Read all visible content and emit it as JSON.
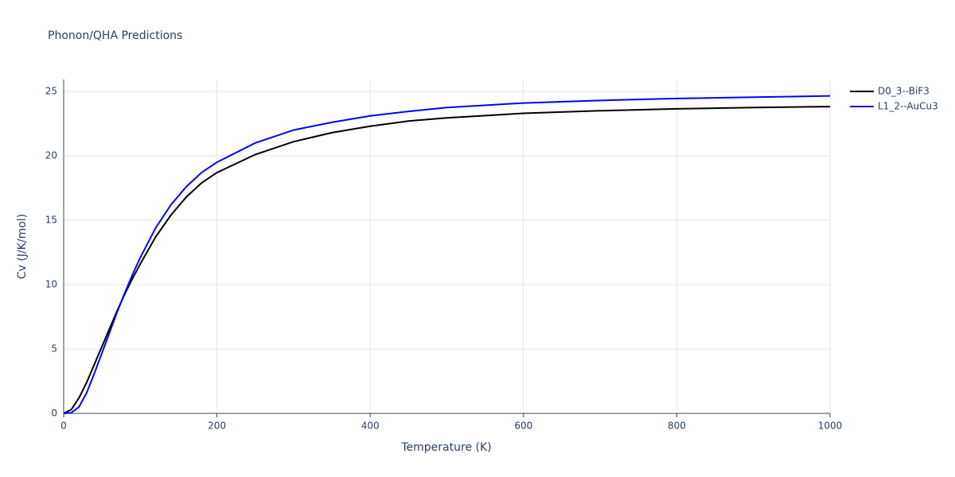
{
  "chart_data": {
    "type": "line",
    "title": "Phonon/QHA Predictions",
    "x_label": "Temperature (K)",
    "y_label": "Cv (J/K/mol)",
    "x": [
      0,
      10,
      20,
      30,
      40,
      50,
      60,
      70,
      80,
      90,
      100,
      120,
      140,
      160,
      180,
      200,
      250,
      300,
      350,
      400,
      450,
      500,
      600,
      700,
      800,
      900,
      1000
    ],
    "series": [
      {
        "name": "D0_3--BiF3",
        "color": "#000000",
        "values": [
          0,
          0.3,
          1.2,
          2.4,
          3.8,
          5.2,
          6.6,
          8.0,
          9.3,
          10.5,
          11.6,
          13.7,
          15.4,
          16.8,
          17.9,
          18.7,
          20.1,
          21.1,
          21.8,
          22.3,
          22.7,
          22.95,
          23.3,
          23.5,
          23.65,
          23.75,
          23.82
        ]
      },
      {
        "name": "L1_2--AuCu3",
        "color": "#0000ff",
        "values": [
          0,
          0.05,
          0.5,
          1.6,
          3.1,
          4.7,
          6.3,
          7.9,
          9.4,
          10.8,
          12.1,
          14.4,
          16.2,
          17.6,
          18.7,
          19.5,
          21.0,
          22.0,
          22.6,
          23.1,
          23.45,
          23.75,
          24.1,
          24.3,
          24.45,
          24.55,
          24.65
        ]
      }
    ],
    "xlim": [
      0,
      1000
    ],
    "xticks": [
      0,
      200,
      400,
      600,
      800,
      1000
    ],
    "ylim": [
      0,
      25
    ],
    "yticks": [
      0,
      5,
      10,
      15,
      20,
      25
    ],
    "grid": true,
    "legend": "right"
  }
}
